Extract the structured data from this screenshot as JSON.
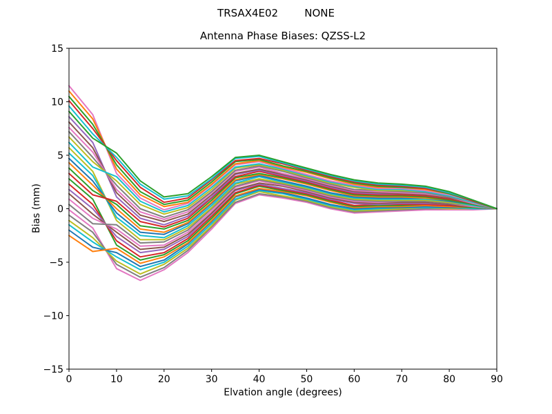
{
  "chart_data": {
    "type": "line",
    "suptitle": "TRSAX4E02        NONE",
    "title": "Antenna Phase Biases: QZSS-L2",
    "xlabel": "Elvation angle (degrees)",
    "ylabel": "Bias (mm)",
    "xlim": [
      0,
      90
    ],
    "ylim": [
      -15,
      15
    ],
    "xticks": [
      0,
      10,
      20,
      30,
      40,
      50,
      60,
      70,
      80,
      90
    ],
    "yticks": [
      -15,
      -10,
      -5,
      0,
      5,
      10,
      15
    ],
    "xtick_labels": [
      "0",
      "10",
      "20",
      "30",
      "40",
      "50",
      "60",
      "70",
      "80",
      "90"
    ],
    "ytick_labels": [
      "−15",
      "−10",
      "−5",
      "0",
      "5",
      "10",
      "15"
    ],
    "layout": {
      "grid": false,
      "legend": "none",
      "background": "#ffffff",
      "spine_color": "#000000",
      "text_color": "#000000",
      "line_width": 2,
      "tick_length": 4
    },
    "x": [
      0,
      5,
      10,
      15,
      20,
      25,
      30,
      35,
      40,
      45,
      50,
      55,
      60,
      65,
      70,
      75,
      80,
      85,
      90
    ],
    "series": [
      {
        "color": "#e377c2",
        "values": [
          -0.1,
          -1.8,
          -5.6,
          -6.7,
          -5.7,
          -4.1,
          -1.9,
          0.5,
          1.3,
          1.0,
          0.6,
          0.0,
          -0.4,
          -0.3,
          -0.2,
          -0.1,
          -0.1,
          -0.1,
          0.0
        ]
      },
      {
        "color": "#7f7f7f",
        "values": [
          -0.6,
          -2.2,
          -5.2,
          -6.4,
          -5.5,
          -3.9,
          -1.7,
          0.6,
          1.4,
          1.1,
          0.7,
          0.1,
          -0.3,
          -0.2,
          -0.1,
          0.0,
          0.0,
          0.0,
          0.0
        ]
      },
      {
        "color": "#bcbd22",
        "values": [
          -1.1,
          -2.7,
          -4.9,
          -6.1,
          -5.2,
          -3.7,
          -1.6,
          0.8,
          1.6,
          1.2,
          0.8,
          0.2,
          -0.2,
          -0.1,
          0.0,
          0.1,
          0.0,
          0.0,
          0.0
        ]
      },
      {
        "color": "#17becf",
        "values": [
          -1.5,
          -3.1,
          -4.5,
          -5.7,
          -5.0,
          -3.5,
          -1.4,
          0.9,
          1.7,
          1.4,
          0.9,
          0.3,
          -0.1,
          0.0,
          0.1,
          0.1,
          0.1,
          0.0,
          0.0
        ]
      },
      {
        "color": "#1f77b4",
        "values": [
          -2.0,
          -3.6,
          -4.1,
          -5.4,
          -4.8,
          -3.3,
          -1.2,
          1.1,
          1.8,
          1.5,
          1.0,
          0.4,
          0.0,
          0.1,
          0.1,
          0.2,
          0.1,
          0.1,
          0.0
        ]
      },
      {
        "color": "#ff7f0e",
        "values": [
          -2.5,
          -4.0,
          -3.7,
          -5.1,
          -4.5,
          -3.2,
          -1.1,
          1.2,
          1.9,
          1.6,
          1.2,
          0.6,
          0.1,
          0.2,
          0.2,
          0.3,
          0.2,
          0.1,
          0.0
        ]
      },
      {
        "color": "#2ca02c",
        "values": [
          2.8,
          0.9,
          -3.4,
          -4.8,
          -4.3,
          -3.0,
          -0.9,
          1.4,
          2.1,
          1.7,
          1.3,
          0.7,
          0.2,
          0.3,
          0.3,
          0.4,
          0.3,
          0.1,
          0.0
        ]
      },
      {
        "color": "#d62728",
        "values": [
          2.3,
          0.4,
          -3.0,
          -4.5,
          -4.1,
          -2.8,
          -0.7,
          1.5,
          2.2,
          1.8,
          1.4,
          0.8,
          0.3,
          0.4,
          0.4,
          0.4,
          0.3,
          0.2,
          0.0
        ]
      },
      {
        "color": "#9467bd",
        "values": [
          1.8,
          0.0,
          -2.6,
          -4.1,
          -3.8,
          -2.6,
          -0.5,
          1.7,
          2.3,
          1.9,
          1.5,
          0.9,
          0.5,
          0.4,
          0.5,
          0.5,
          0.4,
          0.2,
          0.0
        ]
      },
      {
        "color": "#8c564b",
        "values": [
          1.4,
          -0.5,
          -2.2,
          -3.8,
          -3.6,
          -2.4,
          -0.4,
          1.8,
          2.4,
          2.1,
          1.6,
          1.0,
          0.6,
          0.5,
          0.6,
          0.6,
          0.4,
          0.2,
          0.0
        ]
      },
      {
        "color": "#e377c2",
        "values": [
          0.9,
          -0.9,
          -1.9,
          -3.5,
          -3.4,
          -2.2,
          -0.2,
          2.0,
          2.6,
          2.2,
          1.7,
          1.1,
          0.7,
          0.6,
          0.7,
          0.7,
          0.5,
          0.2,
          0.0
        ]
      },
      {
        "color": "#7f7f7f",
        "values": [
          0.4,
          -1.4,
          -1.5,
          -3.2,
          -3.1,
          -2.0,
          0.0,
          2.1,
          2.7,
          2.3,
          1.8,
          1.2,
          0.8,
          0.7,
          0.7,
          0.7,
          0.5,
          0.3,
          0.0
        ]
      },
      {
        "color": "#bcbd22",
        "values": [
          5.7,
          3.5,
          -1.1,
          -2.9,
          -2.9,
          -1.8,
          0.1,
          2.3,
          2.8,
          2.4,
          1.9,
          1.3,
          0.9,
          0.8,
          0.8,
          0.8,
          0.6,
          0.3,
          0.0
        ]
      },
      {
        "color": "#17becf",
        "values": [
          5.2,
          3.1,
          -0.8,
          -2.5,
          -2.7,
          -1.6,
          0.3,
          2.4,
          3.0,
          2.5,
          2.0,
          1.4,
          1.0,
          0.9,
          0.9,
          0.9,
          0.7,
          0.3,
          0.0
        ]
      },
      {
        "color": "#1f77b4",
        "values": [
          4.7,
          2.6,
          -0.4,
          -2.2,
          -2.4,
          -1.4,
          0.5,
          2.6,
          3.1,
          2.6,
          2.1,
          1.5,
          1.1,
          1.0,
          1.0,
          1.0,
          0.7,
          0.4,
          0.0
        ]
      },
      {
        "color": "#ff7f0e",
        "values": [
          4.3,
          2.2,
          0.0,
          -1.9,
          -2.2,
          -1.3,
          0.6,
          2.7,
          3.2,
          2.8,
          2.3,
          1.7,
          1.2,
          1.1,
          1.1,
          1.0,
          0.8,
          0.4,
          0.0
        ]
      },
      {
        "color": "#2ca02c",
        "values": [
          3.8,
          1.7,
          0.4,
          -1.6,
          -1.9,
          -1.1,
          0.8,
          2.9,
          3.3,
          2.9,
          2.4,
          1.8,
          1.3,
          1.2,
          1.2,
          1.1,
          0.8,
          0.4,
          0.0
        ]
      },
      {
        "color": "#d62728",
        "values": [
          3.3,
          1.3,
          0.7,
          -1.2,
          -1.7,
          -0.9,
          1.0,
          3.0,
          3.5,
          3.0,
          2.5,
          1.9,
          1.4,
          1.3,
          1.3,
          1.2,
          0.9,
          0.5,
          0.0
        ]
      },
      {
        "color": "#9467bd",
        "values": [
          8.6,
          6.2,
          1.1,
          -0.9,
          -1.5,
          -0.7,
          1.1,
          3.2,
          3.6,
          3.1,
          2.6,
          2.0,
          1.5,
          1.4,
          1.4,
          1.3,
          1.0,
          0.5,
          0.0
        ]
      },
      {
        "color": "#8c564b",
        "values": [
          8.1,
          5.7,
          1.5,
          -0.6,
          -1.2,
          -0.5,
          1.3,
          3.3,
          3.7,
          3.2,
          2.7,
          2.1,
          1.6,
          1.5,
          1.4,
          1.3,
          1.0,
          0.5,
          0.0
        ]
      },
      {
        "color": "#e377c2",
        "values": [
          7.6,
          5.3,
          1.8,
          -0.3,
          -1.0,
          -0.3,
          1.5,
          3.5,
          3.9,
          3.3,
          2.8,
          2.2,
          1.7,
          1.6,
          1.5,
          1.4,
          1.1,
          0.5,
          0.0
        ]
      },
      {
        "color": "#7f7f7f",
        "values": [
          7.2,
          4.8,
          2.2,
          0.0,
          -0.8,
          -0.1,
          1.6,
          3.6,
          4.0,
          3.5,
          2.9,
          2.3,
          1.8,
          1.7,
          1.6,
          1.5,
          1.1,
          0.6,
          0.0
        ]
      },
      {
        "color": "#bcbd22",
        "values": [
          6.7,
          4.4,
          2.6,
          0.4,
          -0.5,
          0.1,
          1.8,
          3.8,
          4.1,
          3.6,
          3.0,
          2.4,
          2.0,
          1.7,
          1.7,
          1.6,
          1.2,
          0.6,
          0.0
        ]
      },
      {
        "color": "#17becf",
        "values": [
          6.2,
          3.9,
          3.0,
          0.7,
          -0.3,
          0.3,
          2.0,
          3.9,
          4.2,
          3.7,
          3.1,
          2.5,
          2.1,
          1.8,
          1.8,
          1.6,
          1.2,
          0.6,
          0.0
        ]
      },
      {
        "color": "#e377c2",
        "values": [
          11.5,
          8.8,
          3.3,
          1.0,
          -0.1,
          0.5,
          2.2,
          4.1,
          4.4,
          3.8,
          3.2,
          2.6,
          2.2,
          1.9,
          1.9,
          1.7,
          1.3,
          0.7,
          0.0
        ]
      },
      {
        "color": "#ff7f0e",
        "values": [
          11.0,
          8.4,
          3.7,
          1.3,
          0.2,
          0.6,
          2.3,
          4.2,
          4.5,
          3.9,
          3.4,
          2.8,
          2.3,
          2.0,
          2.0,
          1.8,
          1.4,
          0.7,
          0.0
        ]
      },
      {
        "color": "#2ca02c",
        "values": [
          10.5,
          7.9,
          4.1,
          1.6,
          0.4,
          0.8,
          2.5,
          4.4,
          4.6,
          4.0,
          3.5,
          2.9,
          2.4,
          2.1,
          2.0,
          1.9,
          1.4,
          0.7,
          0.0
        ]
      },
      {
        "color": "#d62728",
        "values": [
          10.1,
          7.5,
          4.5,
          2.0,
          0.6,
          1.0,
          2.7,
          4.5,
          4.7,
          4.2,
          3.6,
          3.0,
          2.5,
          2.2,
          2.1,
          1.9,
          1.5,
          0.7,
          0.0
        ]
      },
      {
        "color": "#17becf",
        "values": [
          9.6,
          7.0,
          4.8,
          2.3,
          0.9,
          1.2,
          2.8,
          4.7,
          4.9,
          4.3,
          3.7,
          3.1,
          2.6,
          2.3,
          2.2,
          2.0,
          1.5,
          0.8,
          0.0
        ]
      },
      {
        "color": "#2ca02c",
        "values": [
          9.1,
          6.6,
          5.2,
          2.6,
          1.1,
          1.4,
          3.0,
          4.8,
          5.0,
          4.4,
          3.8,
          3.2,
          2.7,
          2.4,
          2.3,
          2.1,
          1.6,
          0.8,
          0.0
        ]
      }
    ]
  }
}
